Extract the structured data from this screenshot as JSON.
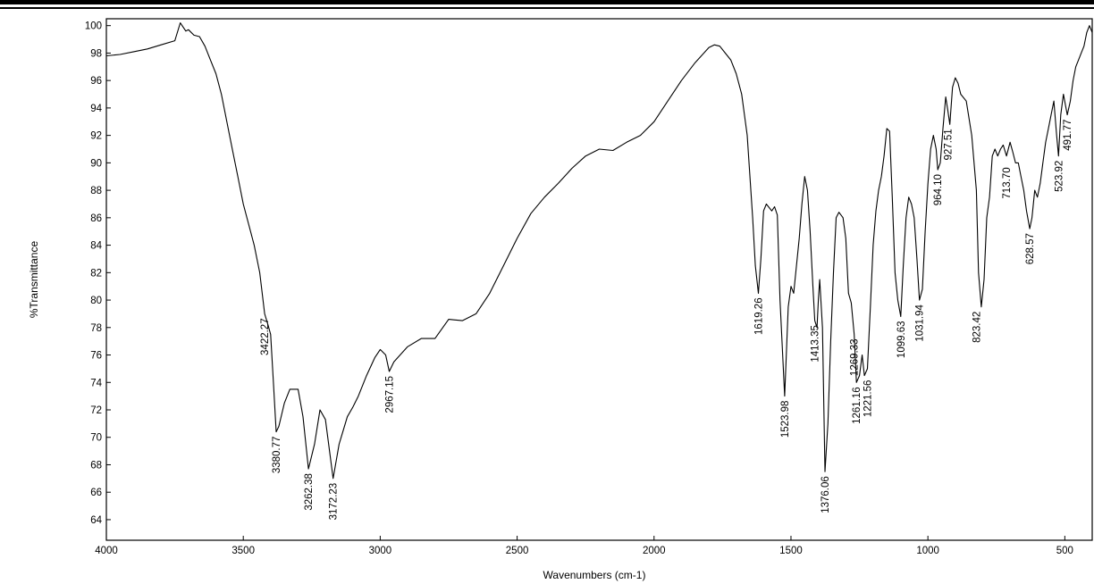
{
  "chart_data": {
    "type": "line",
    "xlabel": "Wavenumbers (cm-1)",
    "ylabel": "%Transmittance",
    "xlim": [
      4000,
      400
    ],
    "ylim": [
      62.5,
      100.5
    ],
    "x_reversed": true,
    "grid": false,
    "xticks": [
      4000,
      3500,
      3000,
      2500,
      2000,
      1500,
      1000,
      500
    ],
    "yticks": [
      64,
      66,
      68,
      70,
      72,
      74,
      76,
      78,
      80,
      82,
      84,
      86,
      88,
      90,
      92,
      94,
      96,
      98,
      100
    ],
    "series": [
      {
        "x": [
          4000,
          3950,
          3900,
          3850,
          3800,
          3750,
          3730,
          3710,
          3700,
          3680,
          3660,
          3640,
          3620,
          3600,
          3580,
          3560,
          3540,
          3520,
          3500,
          3480,
          3460,
          3440,
          3422,
          3410,
          3400,
          3390,
          3380,
          3370,
          3350,
          3330,
          3300,
          3282,
          3262,
          3240,
          3220,
          3200,
          3172,
          3150,
          3120,
          3100,
          3080,
          3050,
          3020,
          3000,
          2980,
          2967,
          2950,
          2900,
          2850,
          2800,
          2750,
          2700,
          2650,
          2600,
          2550,
          2500,
          2450,
          2400,
          2350,
          2300,
          2250,
          2200,
          2150,
          2100,
          2050,
          2000,
          1950,
          1900,
          1850,
          1800,
          1780,
          1760,
          1740,
          1720,
          1700,
          1680,
          1660,
          1640,
          1630,
          1619,
          1610,
          1600,
          1590,
          1570,
          1560,
          1550,
          1540,
          1523,
          1510,
          1500,
          1490,
          1480,
          1470,
          1460,
          1450,
          1440,
          1430,
          1420,
          1413,
          1405,
          1400,
          1395,
          1385,
          1376,
          1365,
          1355,
          1345,
          1335,
          1325,
          1310,
          1300,
          1290,
          1280,
          1269,
          1261,
          1250,
          1240,
          1232,
          1221,
          1210,
          1200,
          1190,
          1180,
          1170,
          1160,
          1150,
          1140,
          1130,
          1120,
          1110,
          1099,
          1090,
          1080,
          1070,
          1060,
          1050,
          1040,
          1031,
          1020,
          1010,
          1000,
          990,
          980,
          970,
          964,
          955,
          945,
          935,
          927,
          920,
          910,
          900,
          890,
          880,
          860,
          840,
          823,
          815,
          805,
          795,
          785,
          775,
          765,
          755,
          745,
          735,
          725,
          713,
          700,
          690,
          680,
          670,
          660,
          650,
          640,
          628,
          620,
          610,
          600,
          590,
          580,
          570,
          560,
          550,
          540,
          530,
          523,
          515,
          505,
          491,
          480,
          470,
          460,
          450,
          440,
          430,
          420,
          410,
          400
        ],
        "y": [
          97.8,
          97.9,
          98.1,
          98.3,
          98.6,
          98.9,
          100.2,
          99.6,
          99.7,
          99.3,
          99.2,
          98.5,
          97.5,
          96.5,
          95.0,
          93.0,
          91.0,
          89.0,
          87.0,
          85.5,
          84.0,
          82.0,
          79.0,
          78.2,
          77.5,
          74.0,
          70.4,
          70.8,
          72.5,
          73.5,
          73.5,
          71.5,
          67.7,
          69.5,
          72.0,
          71.3,
          67.0,
          69.5,
          71.5,
          72.2,
          73.0,
          74.5,
          75.8,
          76.4,
          76.0,
          74.8,
          75.5,
          76.6,
          77.2,
          77.2,
          78.6,
          78.5,
          79.0,
          80.5,
          82.5,
          84.5,
          86.3,
          87.5,
          88.5,
          89.6,
          90.5,
          91.0,
          90.9,
          91.5,
          92.0,
          93.0,
          94.5,
          96.0,
          97.3,
          98.4,
          98.6,
          98.5,
          98.0,
          97.5,
          96.5,
          95.0,
          92.0,
          86.0,
          82.5,
          80.5,
          83.0,
          86.5,
          87.0,
          86.5,
          86.8,
          86.2,
          80.0,
          73.0,
          79.5,
          81.0,
          80.5,
          82.5,
          84.5,
          87.0,
          89.0,
          88.0,
          85.0,
          81.0,
          78.5,
          78.0,
          80.0,
          81.5,
          78.0,
          67.5,
          71.0,
          77.0,
          82.0,
          86.0,
          86.4,
          86.0,
          84.5,
          80.5,
          79.8,
          77.5,
          74.0,
          74.5,
          76.0,
          74.5,
          75.0,
          79.5,
          84.0,
          86.5,
          88.0,
          89.0,
          90.5,
          92.5,
          92.3,
          87.5,
          82.0,
          80.0,
          78.8,
          82.5,
          86.0,
          87.5,
          87.0,
          86.0,
          83.0,
          80.0,
          80.8,
          85.0,
          88.5,
          91.0,
          92.0,
          91.0,
          89.5,
          90.0,
          92.5,
          94.8,
          93.8,
          92.8,
          95.5,
          96.2,
          95.8,
          95.0,
          94.5,
          92.0,
          88.0,
          82.0,
          79.5,
          81.5,
          86.0,
          87.5,
          90.5,
          91.0,
          90.5,
          91.0,
          91.3,
          90.5,
          91.5,
          90.8,
          90.0,
          90.0,
          89.0,
          88.0,
          86.5,
          85.2,
          86.0,
          88.0,
          87.5,
          88.5,
          90.0,
          91.5,
          92.5,
          93.5,
          94.5,
          92.0,
          90.5,
          93.5,
          95.0,
          93.5,
          94.5,
          96.0,
          97.0,
          97.5,
          98.0,
          98.5,
          99.5,
          100.0,
          99.5
        ]
      }
    ],
    "annotations": [
      {
        "label": "3422.27",
        "x": 3422,
        "y": 79.0
      },
      {
        "label": "3380.77",
        "x": 3380,
        "y": 70.4
      },
      {
        "label": "3262.38",
        "x": 3262,
        "y": 67.7
      },
      {
        "label": "3172.23",
        "x": 3172,
        "y": 67.0
      },
      {
        "label": "2967.15",
        "x": 2967,
        "y": 74.8
      },
      {
        "label": "1619.26",
        "x": 1619,
        "y": 80.5
      },
      {
        "label": "1523.98",
        "x": 1523,
        "y": 73.0
      },
      {
        "label": "1413.35",
        "x": 1413,
        "y": 78.5
      },
      {
        "label": "1376.06",
        "x": 1376,
        "y": 67.5
      },
      {
        "label": "1269.33",
        "x": 1269,
        "y": 77.5
      },
      {
        "label": "1261.16",
        "x": 1261,
        "y": 74.0
      },
      {
        "label": "1221.56",
        "x": 1221,
        "y": 74.5
      },
      {
        "label": "1099.63",
        "x": 1099,
        "y": 78.8
      },
      {
        "label": "1031.94",
        "x": 1031,
        "y": 80.0
      },
      {
        "label": "964.10",
        "x": 964,
        "y": 89.5
      },
      {
        "label": "927.51",
        "x": 927,
        "y": 92.8
      },
      {
        "label": "823.42",
        "x": 823,
        "y": 79.5
      },
      {
        "label": "713.70",
        "x": 713,
        "y": 90.0
      },
      {
        "label": "628.57",
        "x": 628,
        "y": 85.2
      },
      {
        "label": "523.92",
        "x": 523,
        "y": 90.5
      },
      {
        "label": "491.77",
        "x": 491,
        "y": 93.5
      }
    ]
  }
}
